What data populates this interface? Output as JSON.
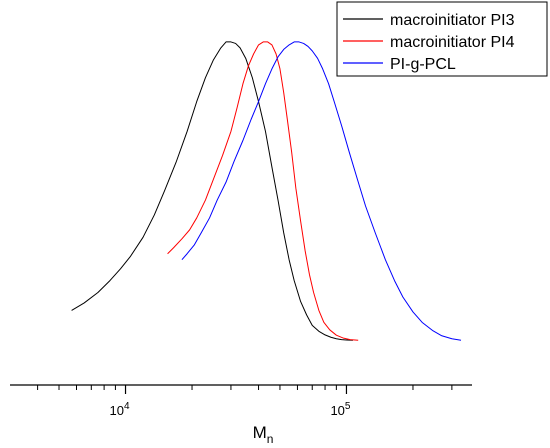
{
  "chart_data": {
    "type": "line",
    "title": "",
    "xlabel": "M",
    "xlabel_subscript": "n",
    "ylabel": "",
    "x_scale": "log",
    "xlim": [
      3000,
      370000
    ],
    "ylim": [
      -0.15,
      1.04
    ],
    "grid": false,
    "legend_position": "top-right",
    "x_ticks": [
      {
        "value": 10000,
        "base": "10",
        "exp": "4"
      },
      {
        "value": 100000,
        "base": "10",
        "exp": "5"
      }
    ],
    "series": [
      {
        "name": "macroinitiator PI3",
        "color": "#000000",
        "x": [
          5700,
          6500,
          7500,
          8500,
          9500,
          10500,
          12000,
          13500,
          15000,
          17000,
          19000,
          21000,
          23000,
          25000,
          27000,
          28500,
          30000,
          31500,
          33000,
          35000,
          37500,
          40000,
          43000,
          46000,
          49000,
          52000,
          55000,
          58000,
          62000,
          66000,
          70000,
          75000,
          80000,
          85000,
          90000,
          95000,
          100000,
          107000
        ],
        "y": [
          0.1,
          0.125,
          0.16,
          0.2,
          0.24,
          0.28,
          0.345,
          0.42,
          0.5,
          0.6,
          0.7,
          0.8,
          0.88,
          0.94,
          0.98,
          1.0,
          1.0,
          0.995,
          0.98,
          0.945,
          0.88,
          0.8,
          0.7,
          0.58,
          0.47,
          0.36,
          0.27,
          0.2,
          0.13,
          0.085,
          0.05,
          0.03,
          0.018,
          0.01,
          0.005,
          0.002,
          0.001,
          0.0
        ]
      },
      {
        "name": "macroinitiator PI4",
        "color": "#ff0000",
        "x": [
          15500,
          16500,
          18000,
          19500,
          21000,
          23000,
          25000,
          27500,
          30000,
          32000,
          34000,
          36000,
          38000,
          40000,
          42000,
          44000,
          46000,
          48000,
          50000,
          52000,
          54000,
          56500,
          59000,
          62000,
          65000,
          68000,
          71000,
          75000,
          79000,
          84000,
          90000,
          97000,
          104000,
          113000
        ],
        "y": [
          0.29,
          0.31,
          0.34,
          0.37,
          0.41,
          0.47,
          0.54,
          0.62,
          0.7,
          0.78,
          0.86,
          0.92,
          0.96,
          0.99,
          1.0,
          1.0,
          0.99,
          0.96,
          0.91,
          0.83,
          0.74,
          0.63,
          0.51,
          0.4,
          0.3,
          0.22,
          0.16,
          0.1,
          0.06,
          0.035,
          0.017,
          0.007,
          0.002,
          0.0
        ]
      },
      {
        "name": "PI-g-PCL",
        "color": "#0000ff",
        "x": [
          18000,
          19000,
          20500,
          22000,
          24000,
          26000,
          28500,
          31000,
          34000,
          37000,
          40000,
          43000,
          46000,
          49000,
          52000,
          55000,
          58000,
          61000,
          64000,
          67000,
          70000,
          74000,
          78000,
          83000,
          88000,
          95000,
          103000,
          112000,
          122000,
          135000,
          150000,
          165000,
          180000,
          200000,
          220000,
          245000,
          270000,
          300000,
          330000
        ],
        "y": [
          0.27,
          0.29,
          0.32,
          0.36,
          0.41,
          0.47,
          0.53,
          0.6,
          0.67,
          0.74,
          0.8,
          0.86,
          0.91,
          0.95,
          0.975,
          0.99,
          1.0,
          1.0,
          0.995,
          0.985,
          0.97,
          0.945,
          0.91,
          0.86,
          0.8,
          0.72,
          0.63,
          0.54,
          0.45,
          0.36,
          0.27,
          0.2,
          0.145,
          0.095,
          0.06,
          0.033,
          0.015,
          0.005,
          0.0
        ]
      }
    ]
  }
}
